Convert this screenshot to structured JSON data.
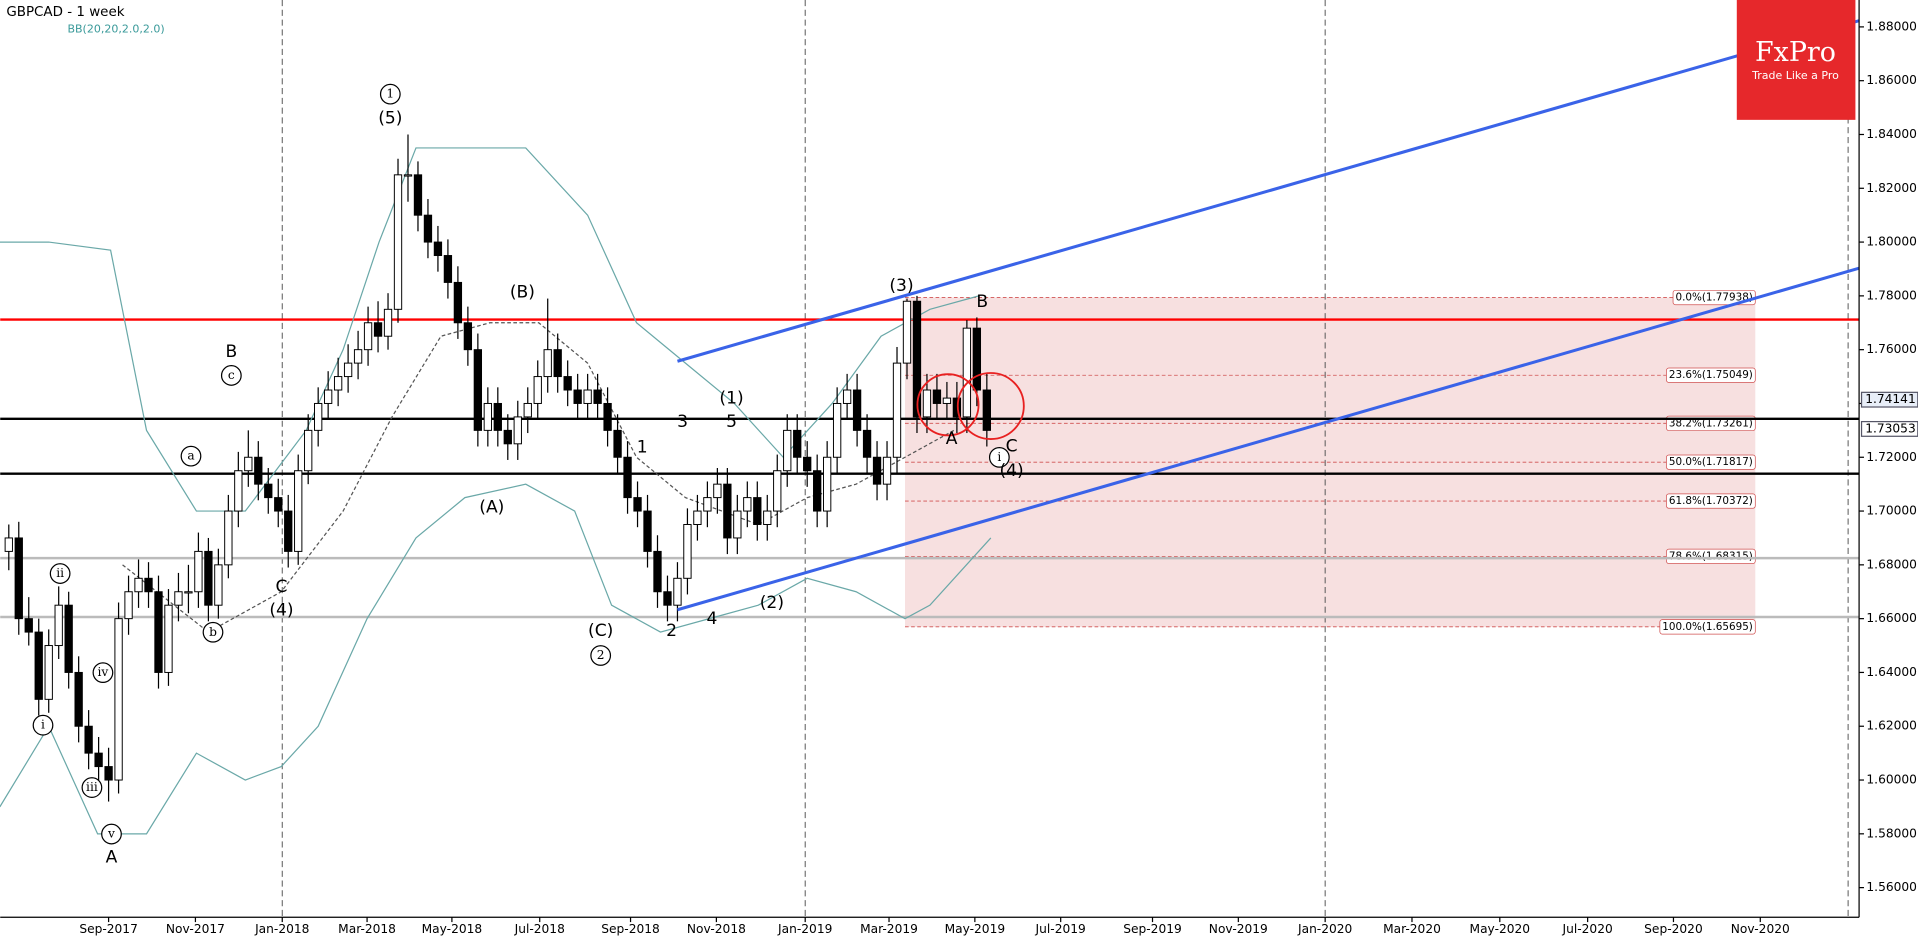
{
  "chart_data": {
    "type": "candlestick",
    "title": "GBPCAD - 1 week",
    "subtitle": "BB(20,20,2.0,2.0)",
    "logo": {
      "title": "FxPro",
      "tagline": "Trade Like a Pro"
    },
    "xlim": [
      -0.86,
      185.4
    ],
    "ylim": [
      1.549,
      1.89
    ],
    "xticks": [
      {
        "value": 10.0,
        "label": "Sep-2017"
      },
      {
        "value": 18.7,
        "label": "Nov-2017"
      },
      {
        "value": 27.4,
        "label": "Jan-2018"
      },
      {
        "value": 35.9,
        "label": "Mar-2018"
      },
      {
        "value": 44.4,
        "label": "May-2018"
      },
      {
        "value": 53.2,
        "label": "Jul-2018"
      },
      {
        "value": 62.3,
        "label": "Sep-2018"
      },
      {
        "value": 70.9,
        "label": "Nov-2018"
      },
      {
        "value": 79.8,
        "label": "Jan-2019"
      },
      {
        "value": 88.2,
        "label": "Mar-2019"
      },
      {
        "value": 96.8,
        "label": "May-2019"
      },
      {
        "value": 105.4,
        "label": "Jul-2019"
      },
      {
        "value": 114.6,
        "label": "Sep-2019"
      },
      {
        "value": 123.2,
        "label": "Nov-2019"
      },
      {
        "value": 131.9,
        "label": "Jan-2020"
      },
      {
        "value": 140.6,
        "label": "Mar-2020"
      },
      {
        "value": 149.4,
        "label": "May-2020"
      },
      {
        "value": 158.2,
        "label": "Jul-2020"
      },
      {
        "value": 166.8,
        "label": "Sep-2020"
      },
      {
        "value": 175.5,
        "label": "Nov-2020"
      }
    ],
    "yticks": [
      {
        "value": 1.56,
        "label": "1.56000"
      },
      {
        "value": 1.58,
        "label": "1.58000"
      },
      {
        "value": 1.6,
        "label": "1.60000"
      },
      {
        "value": 1.62,
        "label": "1.62000"
      },
      {
        "value": 1.64,
        "label": "1.64000"
      },
      {
        "value": 1.66,
        "label": "1.66000"
      },
      {
        "value": 1.68,
        "label": "1.68000"
      },
      {
        "value": 1.7,
        "label": "1.70000"
      },
      {
        "value": 1.72,
        "label": "1.72000"
      },
      {
        "value": 1.74,
        "label": "1.74000"
      },
      {
        "value": 1.76,
        "label": "1.76000"
      },
      {
        "value": 1.78,
        "label": "1.78000"
      },
      {
        "value": 1.8,
        "label": "1.80000"
      },
      {
        "value": 1.82,
        "label": "1.82000"
      },
      {
        "value": 1.84,
        "label": "1.84000"
      },
      {
        "value": 1.86,
        "label": "1.86000"
      },
      {
        "value": 1.88,
        "label": "1.88000"
      }
    ],
    "year_lines": [
      27.4,
      79.8,
      131.9,
      184.3
    ],
    "candles": [
      [
        1.685,
        1.695,
        1.678,
        1.69
      ],
      [
        1.69,
        1.696,
        1.654,
        1.66
      ],
      [
        1.66,
        1.668,
        1.65,
        1.655
      ],
      [
        1.655,
        1.66,
        1.624,
        1.63
      ],
      [
        1.63,
        1.656,
        1.625,
        1.65
      ],
      [
        1.65,
        1.672,
        1.645,
        1.665
      ],
      [
        1.665,
        1.67,
        1.634,
        1.64
      ],
      [
        1.64,
        1.646,
        1.614,
        1.62
      ],
      [
        1.62,
        1.626,
        1.604,
        1.61
      ],
      [
        1.61,
        1.616,
        1.598,
        1.605
      ],
      [
        1.605,
        1.612,
        1.592,
        1.6
      ],
      [
        1.6,
        1.666,
        1.595,
        1.66
      ],
      [
        1.66,
        1.676,
        1.654,
        1.67
      ],
      [
        1.67,
        1.682,
        1.664,
        1.675
      ],
      [
        1.675,
        1.681,
        1.664,
        1.67
      ],
      [
        1.67,
        1.676,
        1.634,
        1.64
      ],
      [
        1.64,
        1.671,
        1.635,
        1.665
      ],
      [
        1.665,
        1.677,
        1.659,
        1.67
      ],
      [
        1.67,
        1.68,
        1.662,
        1.67
      ],
      [
        1.67,
        1.692,
        1.664,
        1.685
      ],
      [
        1.685,
        1.69,
        1.659,
        1.665
      ],
      [
        1.665,
        1.686,
        1.66,
        1.68
      ],
      [
        1.68,
        1.706,
        1.675,
        1.7
      ],
      [
        1.7,
        1.722,
        1.694,
        1.715
      ],
      [
        1.715,
        1.73,
        1.709,
        1.72
      ],
      [
        1.72,
        1.726,
        1.704,
        1.71
      ],
      [
        1.71,
        1.716,
        1.699,
        1.705
      ],
      [
        1.705,
        1.712,
        1.694,
        1.7
      ],
      [
        1.7,
        1.706,
        1.679,
        1.685
      ],
      [
        1.685,
        1.721,
        1.68,
        1.715
      ],
      [
        1.715,
        1.736,
        1.71,
        1.73
      ],
      [
        1.73,
        1.746,
        1.724,
        1.74
      ],
      [
        1.74,
        1.752,
        1.734,
        1.745
      ],
      [
        1.745,
        1.757,
        1.739,
        1.75
      ],
      [
        1.75,
        1.762,
        1.744,
        1.755
      ],
      [
        1.755,
        1.767,
        1.749,
        1.76
      ],
      [
        1.76,
        1.776,
        1.754,
        1.77
      ],
      [
        1.77,
        1.778,
        1.759,
        1.765
      ],
      [
        1.765,
        1.781,
        1.76,
        1.775
      ],
      [
        1.775,
        1.831,
        1.77,
        1.825
      ],
      [
        1.825,
        1.84,
        1.815,
        1.825
      ],
      [
        1.825,
        1.83,
        1.804,
        1.81
      ],
      [
        1.81,
        1.816,
        1.794,
        1.8
      ],
      [
        1.8,
        1.806,
        1.789,
        1.795
      ],
      [
        1.795,
        1.801,
        1.779,
        1.785
      ],
      [
        1.785,
        1.791,
        1.764,
        1.77
      ],
      [
        1.77,
        1.776,
        1.754,
        1.76
      ],
      [
        1.76,
        1.766,
        1.724,
        1.73
      ],
      [
        1.73,
        1.746,
        1.724,
        1.74
      ],
      [
        1.74,
        1.746,
        1.724,
        1.73
      ],
      [
        1.73,
        1.736,
        1.719,
        1.725
      ],
      [
        1.725,
        1.741,
        1.719,
        1.735
      ],
      [
        1.735,
        1.746,
        1.729,
        1.74
      ],
      [
        1.74,
        1.756,
        1.734,
        1.75
      ],
      [
        1.75,
        1.779,
        1.744,
        1.76
      ],
      [
        1.76,
        1.766,
        1.744,
        1.75
      ],
      [
        1.75,
        1.756,
        1.739,
        1.745
      ],
      [
        1.745,
        1.751,
        1.734,
        1.74
      ],
      [
        1.74,
        1.751,
        1.734,
        1.745
      ],
      [
        1.745,
        1.751,
        1.734,
        1.74
      ],
      [
        1.74,
        1.746,
        1.724,
        1.73
      ],
      [
        1.73,
        1.736,
        1.714,
        1.72
      ],
      [
        1.72,
        1.726,
        1.699,
        1.705
      ],
      [
        1.705,
        1.711,
        1.694,
        1.7
      ],
      [
        1.7,
        1.706,
        1.679,
        1.685
      ],
      [
        1.685,
        1.691,
        1.664,
        1.67
      ],
      [
        1.67,
        1.676,
        1.659,
        1.665
      ],
      [
        1.665,
        1.681,
        1.659,
        1.675
      ],
      [
        1.675,
        1.701,
        1.669,
        1.695
      ],
      [
        1.695,
        1.706,
        1.689,
        1.7
      ],
      [
        1.7,
        1.711,
        1.694,
        1.705
      ],
      [
        1.705,
        1.716,
        1.699,
        1.71
      ],
      [
        1.71,
        1.716,
        1.684,
        1.69
      ],
      [
        1.69,
        1.706,
        1.684,
        1.7
      ],
      [
        1.7,
        1.711,
        1.694,
        1.705
      ],
      [
        1.705,
        1.711,
        1.689,
        1.695
      ],
      [
        1.695,
        1.706,
        1.689,
        1.7
      ],
      [
        1.7,
        1.721,
        1.694,
        1.715
      ],
      [
        1.715,
        1.736,
        1.709,
        1.73
      ],
      [
        1.73,
        1.736,
        1.714,
        1.72
      ],
      [
        1.72,
        1.726,
        1.709,
        1.715
      ],
      [
        1.715,
        1.721,
        1.694,
        1.7
      ],
      [
        1.7,
        1.726,
        1.694,
        1.72
      ],
      [
        1.72,
        1.746,
        1.714,
        1.74
      ],
      [
        1.74,
        1.751,
        1.734,
        1.745
      ],
      [
        1.745,
        1.751,
        1.724,
        1.73
      ],
      [
        1.73,
        1.736,
        1.714,
        1.72
      ],
      [
        1.72,
        1.726,
        1.704,
        1.71
      ],
      [
        1.71,
        1.726,
        1.704,
        1.72
      ],
      [
        1.72,
        1.761,
        1.714,
        1.755
      ],
      [
        1.755,
        1.779,
        1.749,
        1.778
      ],
      [
        1.778,
        1.78,
        1.729,
        1.735
      ],
      [
        1.735,
        1.751,
        1.729,
        1.745
      ],
      [
        1.745,
        1.751,
        1.734,
        1.74
      ],
      [
        1.74,
        1.748,
        1.734,
        1.742
      ],
      [
        1.742,
        1.748,
        1.729,
        1.735
      ],
      [
        1.735,
        1.771,
        1.729,
        1.768
      ],
      [
        1.768,
        1.772,
        1.739,
        1.745
      ],
      [
        1.745,
        1.751,
        1.724,
        1.73
      ]
    ],
    "bands": [
      {
        "color": "#6aa8a8",
        "x": [
          -0.9,
          4.0,
          10.2,
          13.8,
          18.8,
          23.7,
          29.8,
          33.5,
          37.1,
          40.8,
          45.7,
          51.8,
          58.0,
          62.9,
          67.8,
          72.7,
          77.6,
          82.5,
          87.4,
          92.3,
          97.2
        ],
        "values": [
          1.8,
          1.8,
          1.797,
          1.73,
          1.7,
          1.7,
          1.73,
          1.76,
          1.8,
          1.835,
          1.835,
          1.835,
          1.81,
          1.77,
          1.755,
          1.74,
          1.72,
          1.74,
          1.765,
          1.775,
          1.78
        ]
      },
      {
        "color": "#6aa8a8",
        "x": [
          -0.9,
          4.0,
          8.9,
          13.8,
          18.8,
          23.7,
          27.3,
          31.0,
          35.9,
          40.8,
          45.7,
          51.8,
          56.7,
          60.4,
          65.3,
          70.2,
          75.1,
          80.0,
          84.9,
          89.8,
          92.3,
          98.4
        ],
        "values": [
          1.59,
          1.62,
          1.58,
          1.58,
          1.61,
          1.6,
          1.605,
          1.62,
          1.66,
          1.69,
          1.705,
          1.71,
          1.7,
          1.665,
          1.655,
          1.66,
          1.665,
          1.675,
          1.67,
          1.66,
          1.665,
          1.69
        ]
      },
      {
        "color": "#555555",
        "dashed": true,
        "x": [
          11.4,
          20.0,
          27.3,
          33.5,
          38.4,
          43.3,
          48.2,
          53.1,
          58.0,
          62.9,
          67.8,
          75.1,
          80.0,
          84.9,
          89.8,
          94.7
        ],
        "values": [
          1.68,
          1.655,
          1.67,
          1.7,
          1.735,
          1.765,
          1.77,
          1.77,
          1.755,
          1.72,
          1.705,
          1.695,
          1.705,
          1.71,
          1.72,
          1.73
        ]
      }
    ],
    "hlines": [
      {
        "value": 1.7712,
        "color": "#ff0000"
      },
      {
        "value": 1.7343,
        "color": "#000000"
      },
      {
        "value": 1.7139,
        "color": "#000000"
      },
      {
        "value": 1.6825,
        "color": "#bbbbbb"
      },
      {
        "value": 1.6606,
        "color": "#bbbbbb"
      }
    ],
    "channels": [
      {
        "color": "#3a63e8",
        "x": [
          67.0,
          185.4
        ],
        "values": [
          1.7557,
          1.8823
        ]
      },
      {
        "color": "#3a63e8",
        "x": [
          67.0,
          185.4
        ],
        "values": [
          1.6633,
          1.7903
        ]
      }
    ],
    "fib_x": [
      89.8,
      175.0
    ],
    "fib_levels": [
      {
        "value": 1.77938,
        "label": "0.0%(1.77938)"
      },
      {
        "value": 1.75049,
        "label": "23.6%(1.75049)"
      },
      {
        "value": 1.73261,
        "label": "38.2%(1.73261)"
      },
      {
        "value": 1.71817,
        "label": "50.0%(1.71817)"
      },
      {
        "value": 1.70372,
        "label": "61.8%(1.70372)"
      },
      {
        "value": 1.68315,
        "label": "78.6%(1.68315)"
      },
      {
        "value": 1.65695,
        "label": "100.0%(1.65695)"
      }
    ],
    "price_labels": [
      {
        "value": 1.74141,
        "label": "1.74141"
      },
      {
        "value": 1.73053,
        "label": "1.73053"
      }
    ],
    "annotations": [
      "1",
      "(5)",
      "B",
      "c",
      "a",
      "ii",
      "i",
      "iv",
      "iii",
      "v",
      "A",
      "b",
      "C",
      "(4)",
      "(B)",
      "(A)",
      "(C)",
      "2",
      "1",
      "3",
      "(1)",
      "5",
      "2",
      "4",
      "(2)",
      "(3)",
      "A",
      "B",
      "C",
      "i",
      "(4)"
    ]
  }
}
